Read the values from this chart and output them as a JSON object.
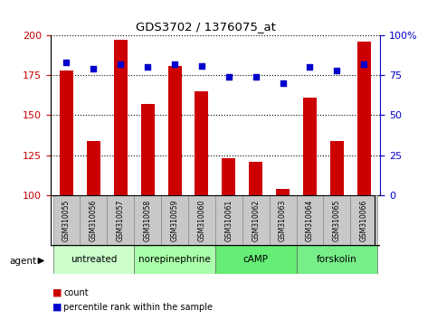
{
  "title": "GDS3702 / 1376075_at",
  "samples": [
    "GSM310055",
    "GSM310056",
    "GSM310057",
    "GSM310058",
    "GSM310059",
    "GSM310060",
    "GSM310061",
    "GSM310062",
    "GSM310063",
    "GSM310064",
    "GSM310065",
    "GSM310066"
  ],
  "counts": [
    178,
    134,
    197,
    157,
    181,
    165,
    123,
    121,
    104,
    161,
    134,
    196
  ],
  "percentile_ranks": [
    83,
    79,
    82,
    80,
    82,
    81,
    74,
    74,
    70,
    80,
    78,
    82
  ],
  "ymin": 100,
  "ymax": 200,
  "yticks": [
    100,
    125,
    150,
    175,
    200
  ],
  "right_yticks": [
    0,
    25,
    50,
    75,
    100
  ],
  "bar_color": "#cc0000",
  "scatter_color": "#0000cc",
  "agent_groups": [
    {
      "label": "untreated",
      "start": 0,
      "end": 3,
      "color": "#ccffcc"
    },
    {
      "label": "norepinephrine",
      "start": 3,
      "end": 6,
      "color": "#aaffaa"
    },
    {
      "label": "cAMP",
      "start": 6,
      "end": 9,
      "color": "#66ee77"
    },
    {
      "label": "forskolin",
      "start": 9,
      "end": 12,
      "color": "#77ee88"
    }
  ],
  "ylabel_left_color": "#cc0000",
  "ylabel_right_color": "#0000cc",
  "gridstyle": "dotted",
  "bar_width": 0.5,
  "label_box_color": "#c8c8c8"
}
